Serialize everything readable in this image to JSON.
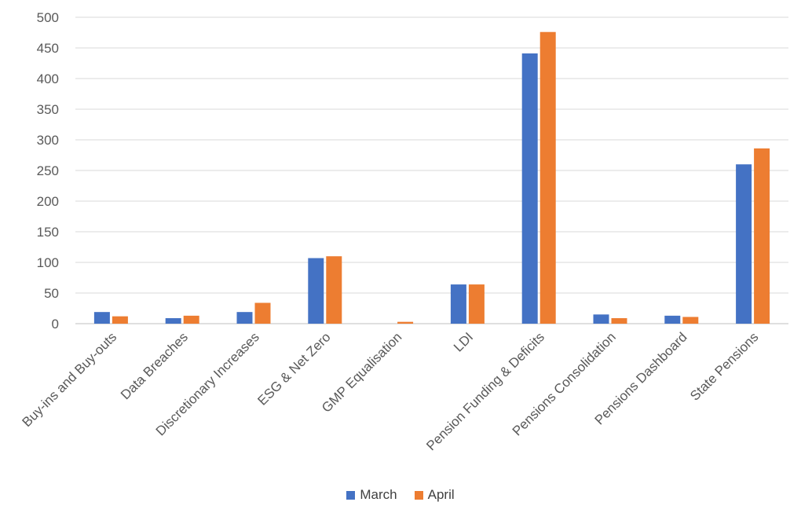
{
  "chart_data": {
    "type": "bar",
    "categories": [
      "Buy-ins and Buy-outs",
      "Data Breaches",
      "Discretionary Increases",
      "ESG & Net Zero",
      "GMP Equalisation",
      "LDI",
      "Pension Funding & Deficits",
      "Pensions Consolidation",
      "Pensions Dashboard",
      "State Pensions"
    ],
    "series": [
      {
        "name": "March",
        "color": "#4472C4",
        "values": [
          19,
          9,
          19,
          107,
          0,
          64,
          441,
          15,
          13,
          260
        ]
      },
      {
        "name": "April",
        "color": "#ED7D31",
        "values": [
          12,
          13,
          34,
          110,
          3,
          64,
          476,
          9,
          11,
          286
        ]
      }
    ],
    "title": "",
    "xlabel": "",
    "ylabel": "",
    "ylim": [
      0,
      500
    ],
    "yticks": [
      0,
      50,
      100,
      150,
      200,
      250,
      300,
      350,
      400,
      450,
      500
    ],
    "grid": true,
    "legend_position": "bottom"
  }
}
